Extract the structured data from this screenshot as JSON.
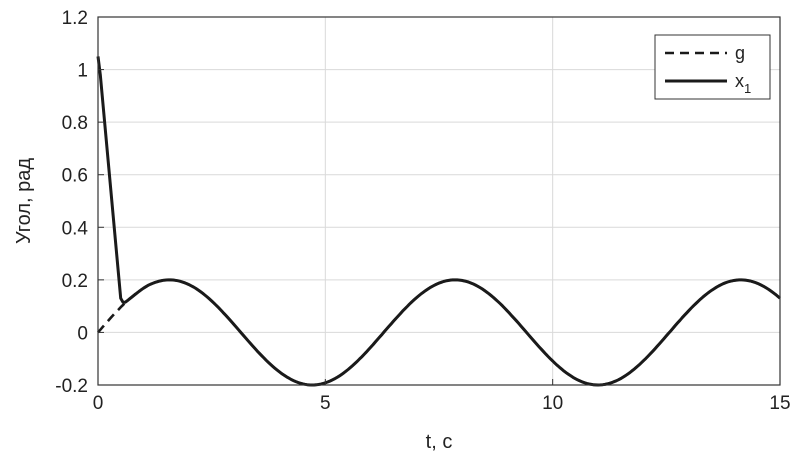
{
  "chart_data": {
    "type": "line",
    "xlabel": "t, c",
    "ylabel": "Угол, рад",
    "xlim": [
      0,
      15
    ],
    "ylim": [
      -0.2,
      1.2
    ],
    "xticks": [
      "0",
      "5",
      "10",
      "15"
    ],
    "yticks": [
      "-0.2",
      "0",
      "0.2",
      "0.4",
      "0.6",
      "0.8",
      "1",
      "1.2"
    ],
    "grid": true,
    "legend_position": "top-right",
    "series": [
      {
        "name": "g",
        "style": "dashed",
        "color": "#1a1a1a",
        "function": "0.2*sin(t)",
        "x": [
          0,
          0.5,
          1,
          1.57,
          2,
          3,
          3.14,
          4,
          4.71,
          5,
          6,
          6.28,
          7,
          7.85,
          8,
          9,
          9.42,
          10,
          11,
          11,
          12,
          12.57,
          13,
          14,
          14.14,
          15
        ],
        "y": [
          0,
          0.096,
          0.168,
          0.2,
          0.182,
          0.028,
          0,
          -0.151,
          -0.2,
          -0.192,
          -0.056,
          0,
          0.131,
          0.2,
          0.198,
          0.082,
          0,
          -0.109,
          -0.2,
          -0.2,
          -0.107,
          0,
          0.084,
          0.198,
          0.2,
          0.13
        ]
      },
      {
        "name": "x",
        "subscript": "1",
        "style": "solid",
        "color": "#1a1a1a",
        "x": [
          0,
          0.05,
          0.5,
          0.55,
          0.6,
          1,
          1.57,
          2,
          3,
          4,
          4.71,
          5,
          6,
          7,
          7.85,
          8,
          9,
          10,
          11,
          12,
          13,
          14,
          14.14,
          15
        ],
        "y": [
          1.05,
          0.98,
          0.13,
          0.115,
          0.115,
          0.168,
          0.2,
          0.182,
          0.028,
          -0.151,
          -0.2,
          -0.192,
          -0.056,
          0.131,
          0.2,
          0.198,
          0.082,
          -0.109,
          -0.2,
          -0.107,
          0.084,
          0.198,
          0.2,
          0.13
        ]
      }
    ]
  }
}
